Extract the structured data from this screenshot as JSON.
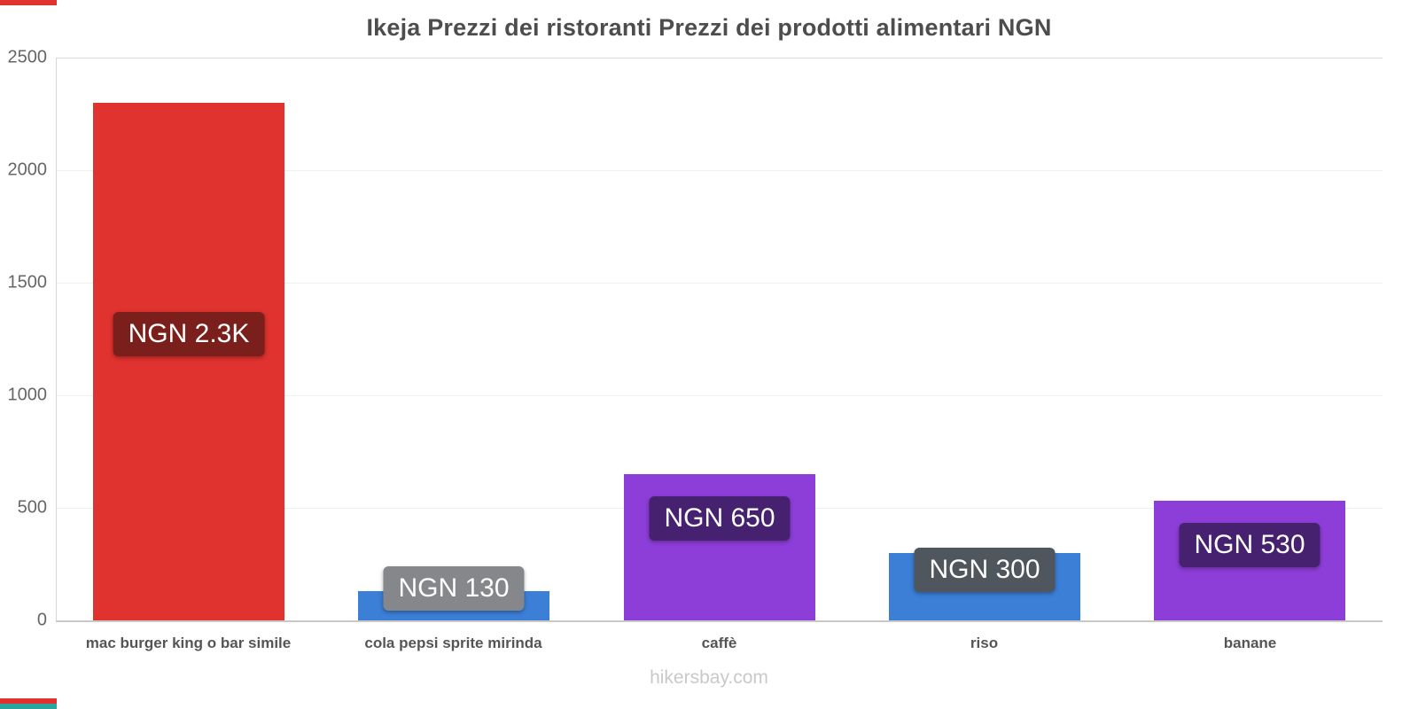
{
  "chart_data": {
    "type": "bar",
    "title": "Ikeja Prezzi dei ristoranti Prezzi dei prodotti alimentari NGN",
    "categories": [
      "mac burger king o bar simile",
      "cola pepsi sprite mirinda",
      "caffè",
      "riso",
      "banane"
    ],
    "values": [
      2300,
      130,
      650,
      300,
      530
    ],
    "value_labels": [
      "NGN 2.3K",
      "NGN 130",
      "NGN 650",
      "NGN 300",
      "NGN 530"
    ],
    "bar_colors": [
      "#e0322f",
      "#3b7fd6",
      "#8d3ed8",
      "#3b7fd6",
      "#8d3ed8"
    ],
    "value_label_colors": [
      "#7a1f1b",
      "#85878a",
      "#45216f",
      "#4f565e",
      "#45216f"
    ],
    "xlabel": "",
    "ylabel": "",
    "ylim": [
      0,
      2500
    ],
    "yticks": [
      0,
      500,
      1000,
      1500,
      2000,
      2500
    ],
    "grid": true,
    "legend_position": "none",
    "currency": "NGN"
  },
  "footer": {
    "text": "hikersbay.com"
  },
  "accents": {
    "top_left": "#e0322f",
    "bottom_left_red": "#e0322f",
    "bottom_left_teal": "#29a69e"
  }
}
